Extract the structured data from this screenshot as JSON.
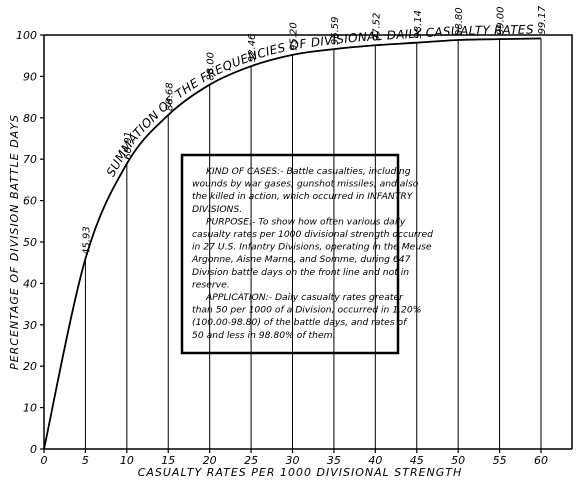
{
  "chart_data": {
    "type": "line",
    "curve_label": "SUMMATION OF THE FREQUENCIES OF DIVISIONAL DAILY CASUALTY RATES",
    "ylabel": "PERCENTAGE OF DIVISION BATTLE DAYS",
    "xlabel": "CASUALTY RATES PER 1000 DIVISIONAL STRENGTH",
    "x": [
      0,
      5,
      10,
      15,
      20,
      25,
      30,
      35,
      40,
      45,
      50,
      55,
      60
    ],
    "values": [
      0,
      45.93,
      68.91,
      80.68,
      88.0,
      92.46,
      95.2,
      96.59,
      97.52,
      98.14,
      98.8,
      99.0,
      99.17
    ],
    "value_labels": [
      null,
      "45.93",
      "68.91",
      "80.68",
      "88.00",
      "92.46",
      "95.20",
      "96.59",
      "97.52",
      "98.14",
      "98.80",
      "99.00",
      "99.17"
    ],
    "color": "#000000",
    "xlim": [
      0,
      63.7
    ],
    "ylim": [
      0,
      100
    ],
    "xticks": [
      0,
      5,
      10,
      15,
      20,
      25,
      30,
      35,
      40,
      45,
      50,
      55,
      60
    ],
    "yticks": [
      0,
      10,
      20,
      30,
      40,
      50,
      60,
      70,
      80,
      90,
      100
    ],
    "annotation_lines": [
      "KIND OF CASES:- Battle casualties, including",
      "wounds by war gases, gunshot missiles, and also",
      "the killed in action, which occurred in INFANTRY",
      "DIVISIONS.",
      "PURPOSE:- To show how often various daily",
      "casualty rates per 1000 divisional strength occurred",
      "in 27 U.S. Infantry Divisions, operating in the Meuse",
      "Argonne, Aisne Marne, and Somme, during 647",
      "Division battle days on the front line and not in",
      "reserve.",
      "APPLICATION:- Daily casualty rates greater",
      "than 50 per 1000 of a Division, occurred in 1.20%",
      "(100.00-98.80) of the battle days, and rates of",
      "50 and less in 98.80% of them."
    ]
  }
}
